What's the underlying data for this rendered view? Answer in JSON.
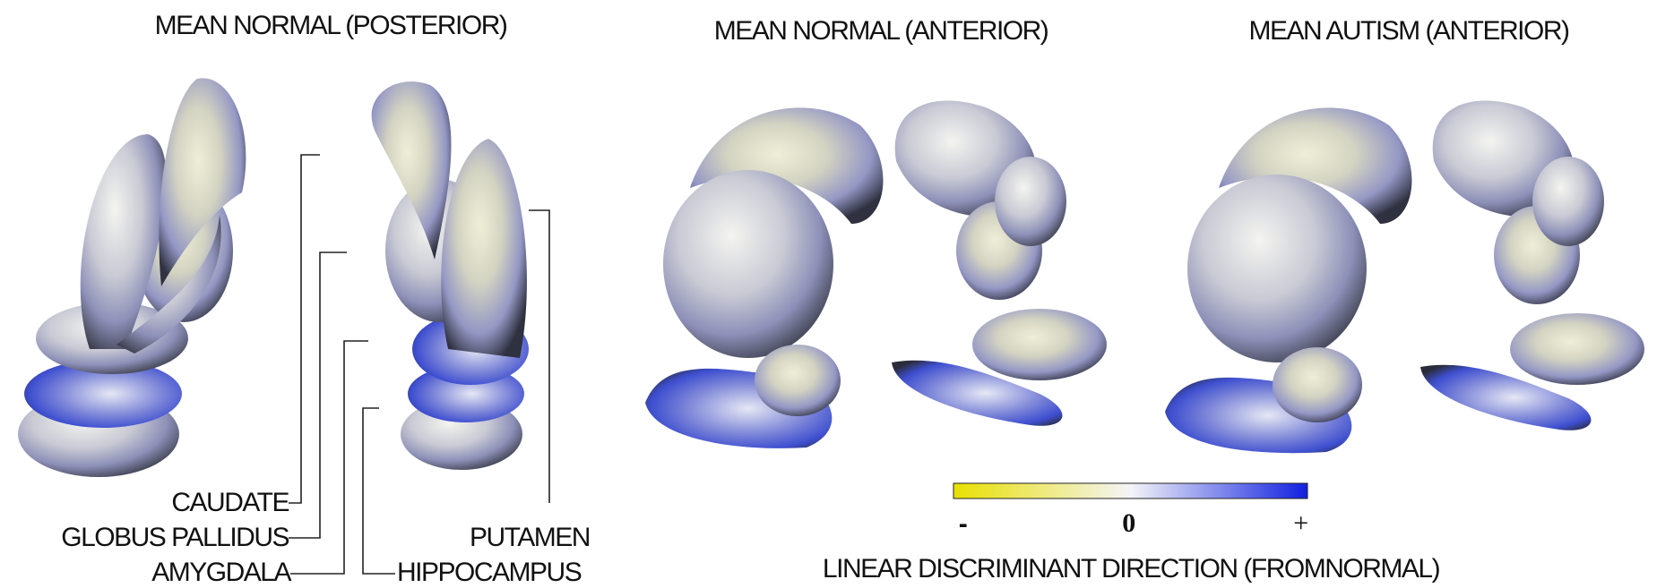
{
  "panels": [
    {
      "title": "MEAN NORMAL (POSTERIOR)"
    },
    {
      "title": "MEAN NORMAL (ANTERIOR)"
    },
    {
      "title": "MEAN AUTISM (ANTERIOR)"
    }
  ],
  "structure_labels": {
    "caudate": "CAUDATE",
    "globus_pallidus": "GLOBUS PALLIDUS",
    "amygdala": "AMYGDALA",
    "putamen": "PUTAMEN",
    "hippocampus": "HIPPOCAMPUS"
  },
  "colorbar": {
    "min_label": "-",
    "mid_label": "0",
    "max_label": "+",
    "title": "LINEAR DISCRIMINANT DIRECTION (FROMNORMAL)"
  }
}
